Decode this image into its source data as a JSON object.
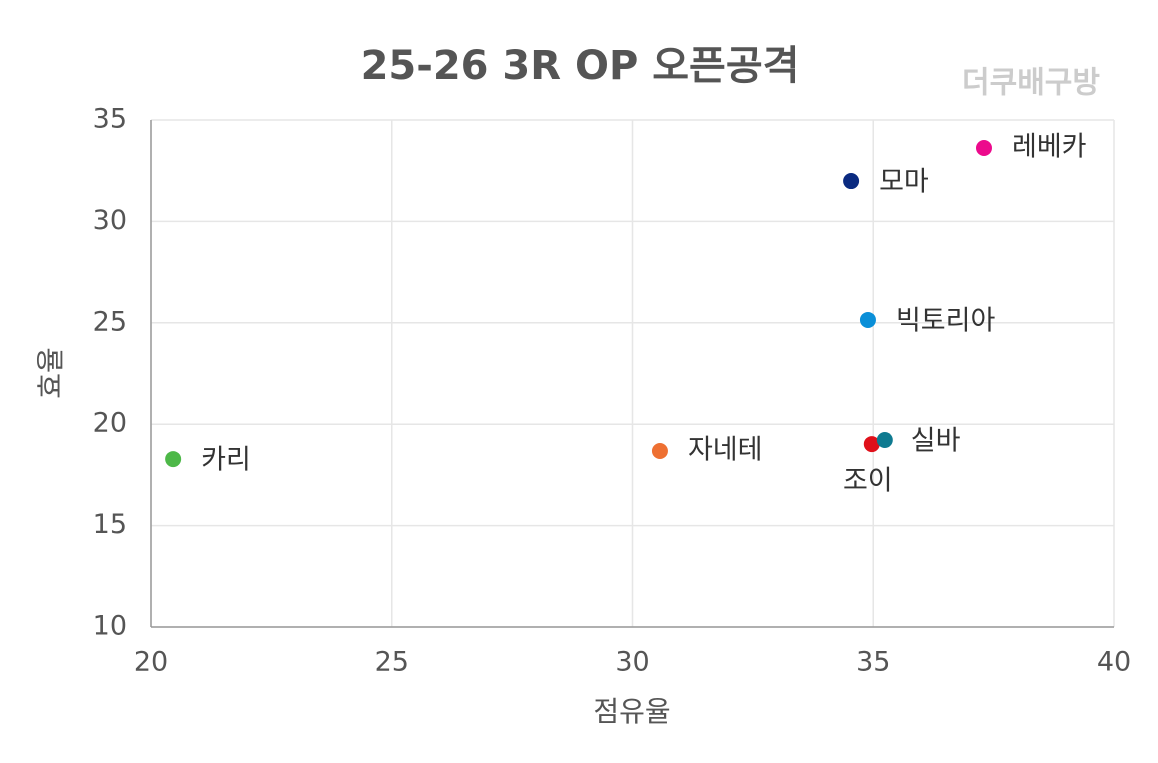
{
  "chart_data": {
    "type": "scatter",
    "title": "25-26 3R OP 오픈공격",
    "watermark": "더쿠배구방",
    "x_label": "점유율",
    "y_label": "효율",
    "xlim": [
      20,
      40
    ],
    "xticks": [
      20,
      25,
      30,
      35,
      40
    ],
    "ylim": [
      10,
      35
    ],
    "yticks": [
      10,
      15,
      20,
      25,
      30,
      35
    ],
    "grid": true,
    "series": [
      {
        "name": "카리",
        "color": "#4db848",
        "x": [
          20.46
        ],
        "values": [
          18.28
        ]
      },
      {
        "name": "자네테",
        "color": "#ee7032",
        "x": [
          30.57
        ],
        "values": [
          18.68
        ]
      },
      {
        "name": "조이",
        "color": "#e0101a",
        "x": [
          34.97
        ],
        "values": [
          19.02
        ]
      },
      {
        "name": "실바",
        "color": "#0e7a90",
        "x": [
          35.24
        ],
        "values": [
          19.22
        ]
      },
      {
        "name": "빅토리아",
        "color": "#0a8fd8",
        "x": [
          34.89
        ],
        "values": [
          25.14
        ]
      },
      {
        "name": "모마",
        "color": "#0a2a80",
        "x": [
          34.54
        ],
        "values": [
          31.99
        ]
      },
      {
        "name": "레베카",
        "color": "#ec0a8c",
        "x": [
          37.3
        ],
        "values": [
          33.62
        ]
      }
    ]
  }
}
